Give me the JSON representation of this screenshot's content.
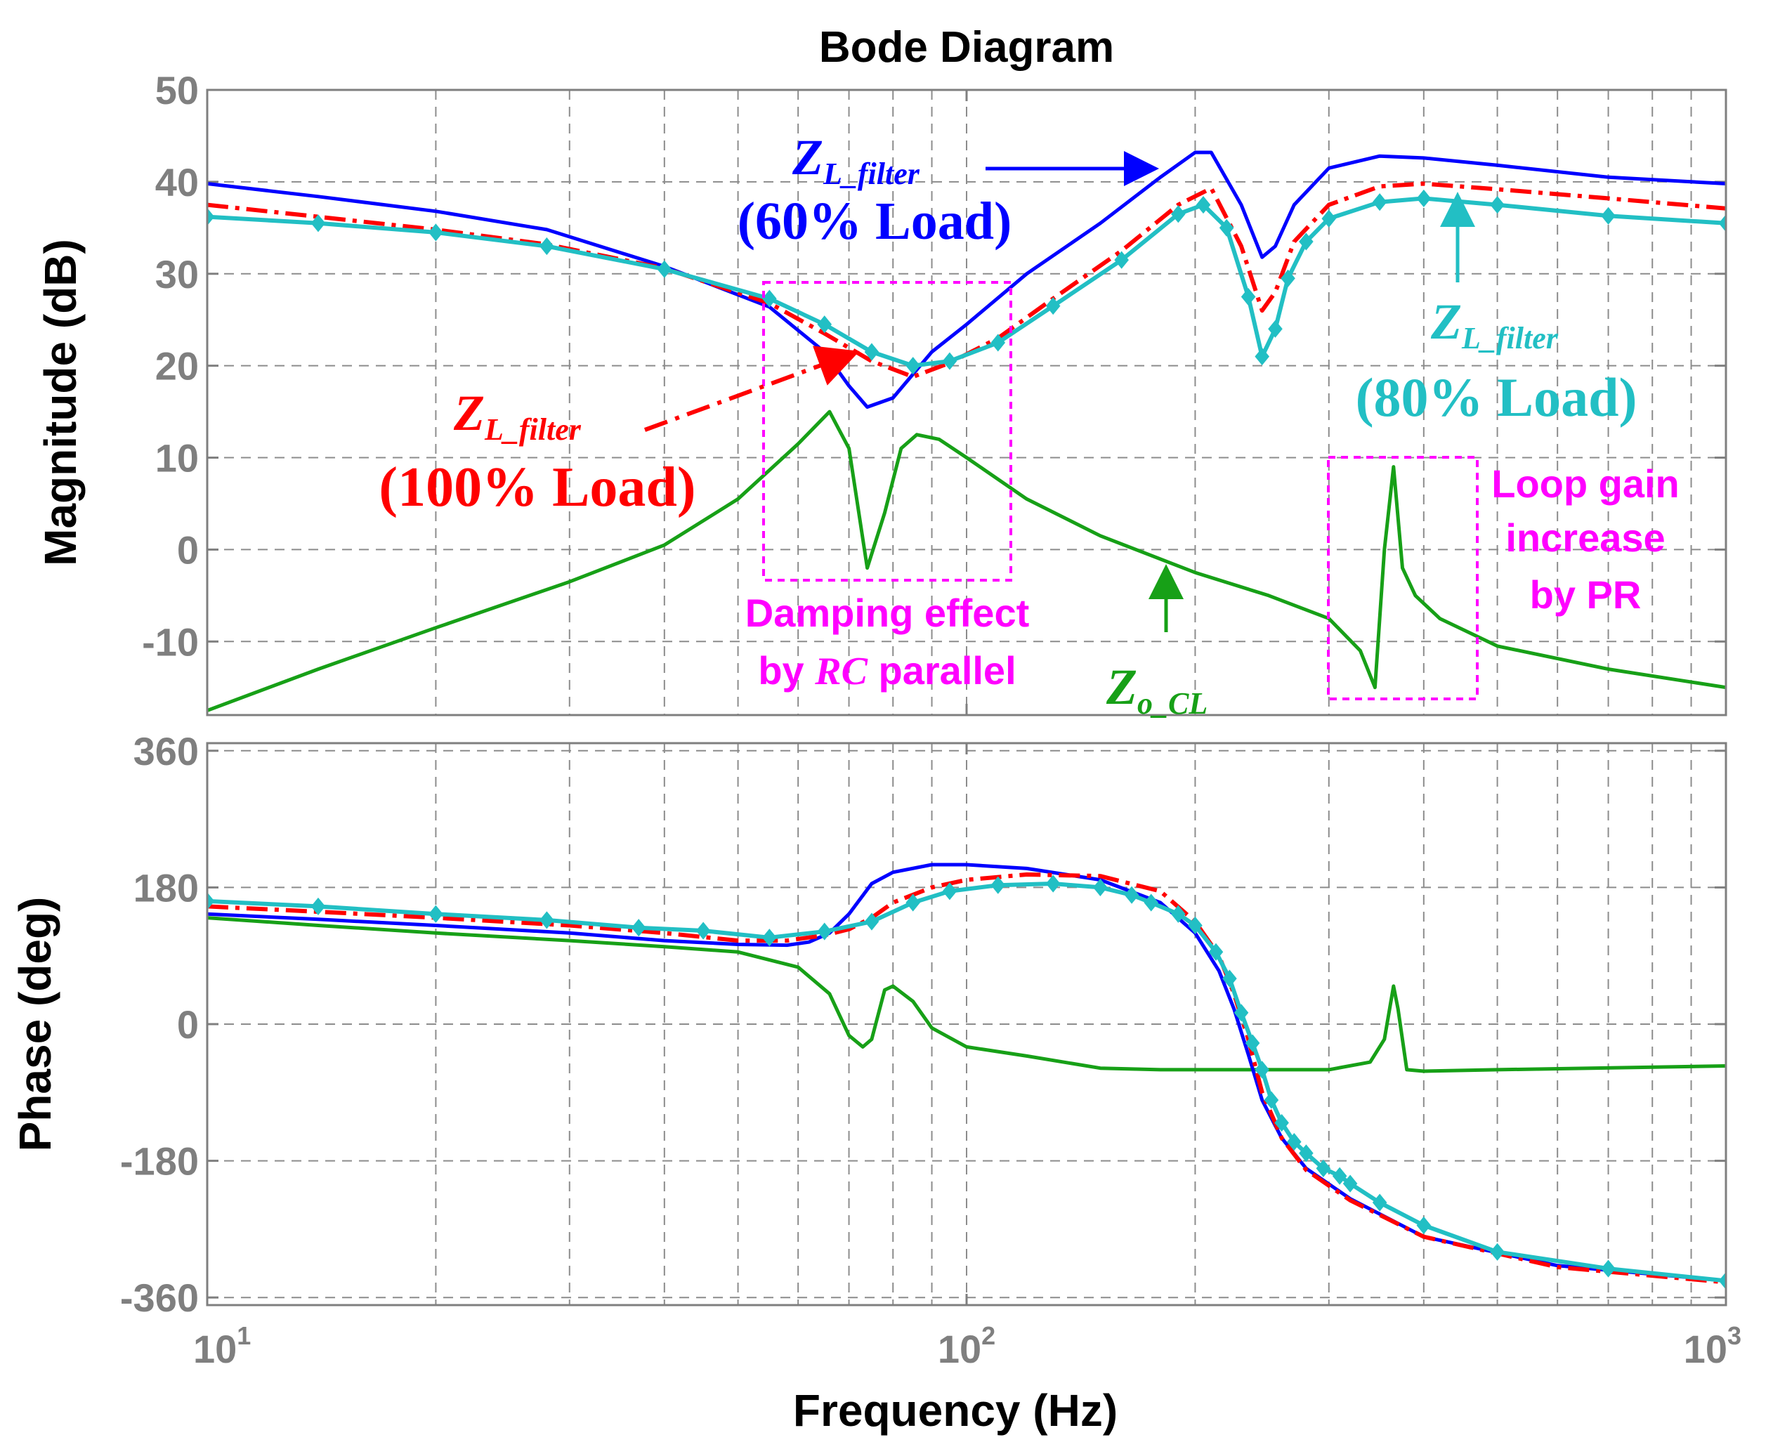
{
  "chart_data": {
    "type": "line",
    "title": "Bode Diagram",
    "xlabel": "Frequency  (Hz)",
    "x_scale": "log",
    "xlim": [
      10,
      1000
    ],
    "x_ticks": [
      {
        "base": "10",
        "exp": "1"
      },
      {
        "base": "10",
        "exp": "2"
      },
      {
        "base": "10",
        "exp": "3"
      }
    ],
    "colors": {
      "blue": "#0000ff",
      "red": "#ff0000",
      "cyan": "#22bfc4",
      "green": "#17a017",
      "magenta": "#ff00ff"
    },
    "magnitude": {
      "ylabel": "Magnitude (dB)",
      "ylim": [
        -18,
        50
      ],
      "y_ticks": [
        "50",
        "40",
        "30",
        "20",
        "10",
        "0",
        "-10"
      ],
      "y_tick_values": [
        50,
        40,
        30,
        20,
        10,
        0,
        -10
      ],
      "series": [
        {
          "name": "ZL_filter (60% Load)",
          "color": "#0000ff",
          "x": [
            10,
            14,
            20,
            28,
            40,
            55,
            65,
            70,
            74,
            80,
            90,
            100,
            120,
            150,
            180,
            200,
            210,
            230,
            245,
            255,
            270,
            300,
            350,
            400,
            500,
            700,
            1000
          ],
          "y": [
            39.8,
            38.4,
            36.8,
            34.8,
            30.8,
            26.4,
            21.5,
            17.8,
            15.5,
            16.5,
            21.5,
            24.5,
            30,
            35.5,
            40.5,
            43.2,
            43.2,
            37.5,
            31.8,
            33,
            37.5,
            41.5,
            42.8,
            42.6,
            41.8,
            40.5,
            39.8
          ]
        },
        {
          "name": "ZL_filter (100% Load)",
          "color": "#ff0000",
          "x": [
            10,
            14,
            20,
            28,
            40,
            55,
            65,
            75,
            85,
            95,
            110,
            130,
            160,
            190,
            210,
            230,
            245,
            255,
            270,
            300,
            350,
            400,
            500,
            700,
            1000
          ],
          "y": [
            37.5,
            36.2,
            34.8,
            33.2,
            30.6,
            26.8,
            23.5,
            20.5,
            18.8,
            20.3,
            23,
            27.3,
            32.5,
            37.5,
            39.3,
            33,
            26,
            28,
            33.5,
            37.5,
            39.5,
            39.8,
            39.2,
            38.2,
            37.1
          ]
        },
        {
          "name": "ZL_filter (80% Load)",
          "color": "#22bfc4",
          "markers": true,
          "x": [
            10,
            14,
            20,
            28,
            40,
            55,
            65,
            75,
            85,
            95,
            110,
            130,
            160,
            190,
            205,
            220,
            235,
            245,
            255,
            265,
            280,
            300,
            350,
            400,
            500,
            700,
            1000
          ],
          "y": [
            36.2,
            35.5,
            34.5,
            33,
            30.5,
            27.3,
            24.5,
            21.5,
            20,
            20.5,
            22.5,
            26.5,
            31.5,
            36.5,
            37.5,
            35,
            27.5,
            21,
            24,
            29.5,
            33.5,
            36,
            37.8,
            38.2,
            37.5,
            36.3,
            35.5
          ]
        },
        {
          "name": "Zo_CL",
          "color": "#17a017",
          "x": [
            10,
            14,
            20,
            30,
            40,
            50,
            60,
            66,
            70,
            74,
            78,
            82,
            86,
            92,
            100,
            120,
            150,
            200,
            250,
            300,
            330,
            345,
            355,
            365,
            375,
            390,
            420,
            500,
            700,
            1000
          ],
          "y": [
            -17.5,
            -13,
            -8.5,
            -3.5,
            0.5,
            5.5,
            11.5,
            15,
            11,
            -2,
            4,
            11,
            12.5,
            12,
            10,
            5.5,
            1.5,
            -2.5,
            -5,
            -7.5,
            -11,
            -15,
            0,
            9,
            -2,
            -5,
            -7.5,
            -10.5,
            -13,
            -15
          ]
        }
      ],
      "annotations": [
        {
          "base": "Z",
          "sub": "L_filter",
          "line2": "(60% Load)",
          "color": "#0000ff"
        },
        {
          "base": "Z",
          "sub": "L_filter",
          "line2": "(100% Load)",
          "color": "#ff0000"
        },
        {
          "base": "Z",
          "sub": "L_filter",
          "line2": "(80% Load)",
          "color": "#22bfc4"
        },
        {
          "base": "Z",
          "sub": "o_CL",
          "color": "#17a017"
        }
      ],
      "notes": [
        {
          "line1": "Damping effect",
          "line2_pre": "by ",
          "line2_italic": "RC",
          "line2_post": " parallel",
          "color": "#ff00ff"
        },
        {
          "lines": [
            "Loop gain",
            "increase",
            "by PR"
          ],
          "color": "#ff00ff"
        }
      ]
    },
    "phase": {
      "ylabel": "Phase (deg)",
      "ylim": [
        -370,
        370
      ],
      "y_ticks": [
        "360",
        "180",
        "0",
        "-180",
        "-360"
      ],
      "y_tick_values": [
        360,
        180,
        0,
        -180,
        -360
      ],
      "series": [
        {
          "name": "ZL_filter (60% Load)",
          "color": "#0000ff",
          "x": [
            10,
            14,
            20,
            30,
            40,
            50,
            58,
            62,
            66,
            70,
            75,
            80,
            90,
            100,
            120,
            150,
            180,
            200,
            215,
            225,
            235,
            245,
            260,
            280,
            320,
            400,
            600,
            1000
          ],
          "y": [
            145,
            138,
            130,
            120,
            110,
            105,
            104,
            108,
            120,
            145,
            185,
            200,
            210,
            210,
            205,
            190,
            160,
            120,
            70,
            20,
            -40,
            -100,
            -150,
            -190,
            -230,
            -280,
            -318,
            -338
          ]
        },
        {
          "name": "ZL_filter (100% Load)",
          "color": "#ff0000",
          "x": [
            10,
            14,
            20,
            30,
            40,
            50,
            58,
            65,
            70,
            75,
            80,
            90,
            100,
            120,
            150,
            180,
            200,
            215,
            225,
            235,
            245,
            260,
            280,
            320,
            400,
            600,
            1000
          ],
          "y": [
            155,
            148,
            140,
            130,
            120,
            110,
            110,
            117,
            125,
            140,
            160,
            180,
            190,
            197,
            195,
            175,
            135,
            90,
            40,
            -20,
            -90,
            -150,
            -192,
            -232,
            -280,
            -320,
            -340
          ]
        },
        {
          "name": "ZL_filter (80% Load)",
          "color": "#22bfc4",
          "markers": true,
          "x": [
            10,
            14,
            20,
            28,
            37,
            45,
            55,
            65,
            75,
            85,
            95,
            110,
            130,
            150,
            165,
            175,
            190,
            200,
            213,
            222,
            230,
            238,
            245,
            252,
            260,
            270,
            280,
            295,
            310,
            320,
            350,
            400,
            500,
            700,
            1000
          ],
          "y": [
            162,
            155,
            145,
            137,
            127,
            123,
            114,
            122,
            135,
            160,
            175,
            183,
            185,
            180,
            170,
            160,
            145,
            130,
            95,
            60,
            15,
            -25,
            -60,
            -100,
            -130,
            -155,
            -170,
            -190,
            -200,
            -210,
            -235,
            -265,
            -300,
            -322,
            -338
          ]
        },
        {
          "name": "Zo_CL",
          "color": "#17a017",
          "x": [
            10,
            14,
            20,
            30,
            40,
            50,
            60,
            66,
            70,
            73,
            75,
            78,
            80,
            85,
            90,
            100,
            120,
            150,
            180,
            220,
            300,
            340,
            355,
            365,
            370,
            380,
            400,
            500,
            1000
          ],
          "y": [
            140,
            130,
            120,
            110,
            102,
            95,
            75,
            40,
            -15,
            -30,
            -20,
            45,
            50,
            30,
            -5,
            -30,
            -42,
            -58,
            -60,
            -60,
            -60,
            -50,
            -20,
            50,
            20,
            -60,
            -62,
            -60,
            -55
          ]
        }
      ]
    }
  }
}
